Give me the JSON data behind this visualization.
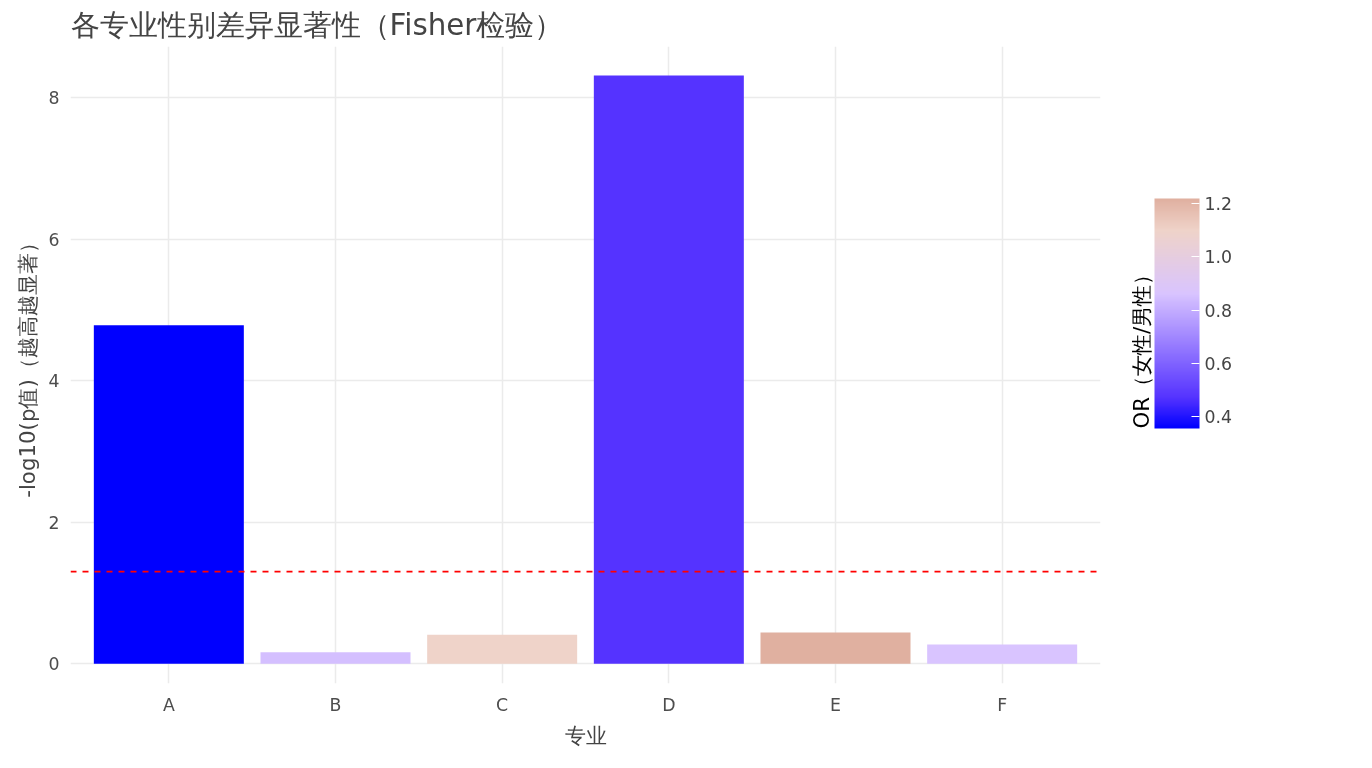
{
  "chart_data": {
    "type": "bar",
    "title": "各专业性别差异显著性（Fisher检验）",
    "xlabel": "专业",
    "ylabel": "-log10(p值)（越高越显著）",
    "clabel": "OR（女性/男性）",
    "categories": [
      "A",
      "B",
      "C",
      "D",
      "E",
      "F"
    ],
    "values": [
      4.78,
      0.16,
      0.41,
      8.31,
      0.44,
      0.27
    ],
    "cvalues": [
      0.355,
      0.85,
      1.1,
      0.47,
      1.219,
      0.86
    ],
    "colors": [
      "#0000ff",
      "#d4bfff",
      "#efd3c9",
      "#5533ff",
      "#e0b0a0",
      "#d9c4ff"
    ],
    "clim": [
      0.355,
      1.219
    ],
    "cticks": [
      0.4,
      0.6,
      0.8,
      {
        "value": 1,
        "label": "1.0"
      },
      1.2
    ],
    "ylim": [
      -0.28,
      8.72
    ],
    "yticks": [
      0,
      2,
      4,
      6,
      8
    ],
    "grid": true,
    "ref_lines": [
      {
        "axis": "y",
        "value": 1.3,
        "color": "#ff0000",
        "line_style": "dashed"
      }
    ]
  }
}
